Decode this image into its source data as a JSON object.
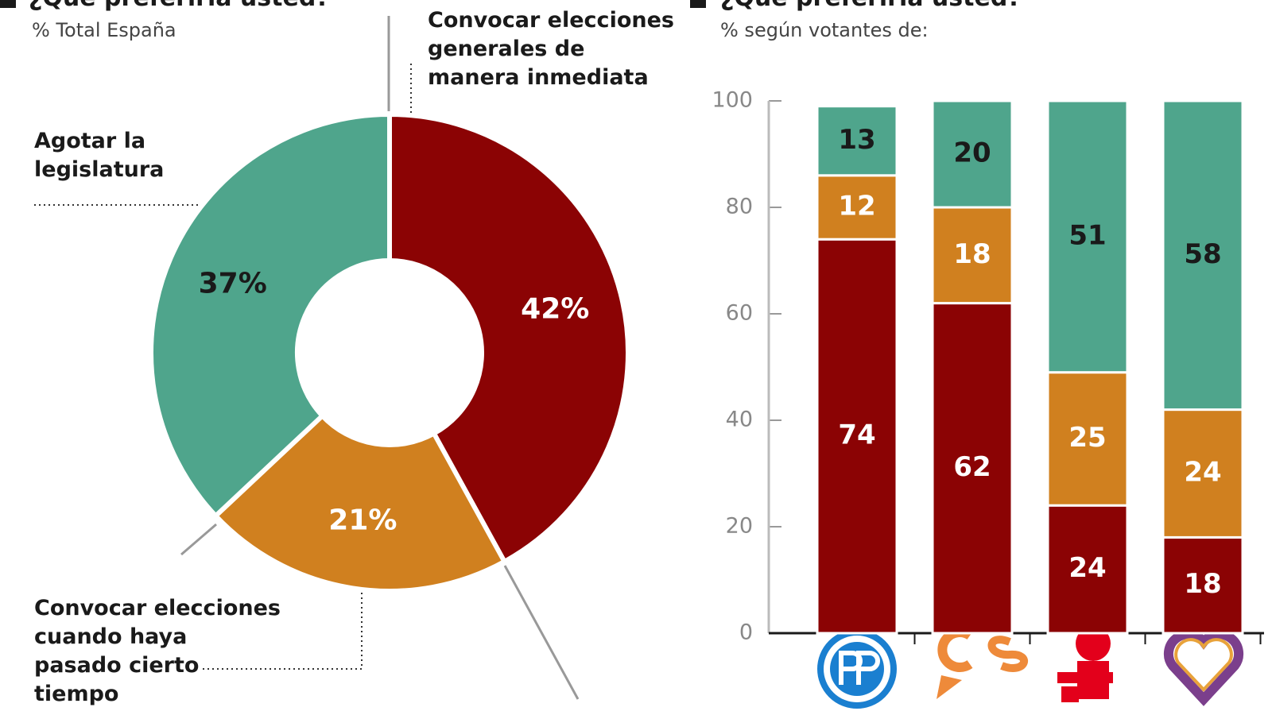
{
  "chart_data": [
    {
      "type": "pie",
      "title": "¿Qué preferiría usted?",
      "subtitle": "% Total España",
      "categories": [
        "Convocar elecciones generales de manera inmediata",
        "Convocar elecciones cuando haya pasado cierto tiempo",
        "Agotar la legislatura"
      ],
      "values": [
        42,
        21,
        37
      ],
      "value_labels": [
        "42%",
        "21%",
        "37%"
      ],
      "colors": [
        "#8b0304",
        "#d0801f",
        "#4fa58c"
      ]
    },
    {
      "type": "bar",
      "stacked": true,
      "title": "¿Qué preferiría usted?",
      "subtitle": "% según votantes de:",
      "categories": [
        null,
        null,
        null,
        null
      ],
      "series": [
        {
          "color": "#8b0304",
          "values": [
            74,
            62,
            24,
            18
          ]
        },
        {
          "color": "#d0801f",
          "values": [
            12,
            18,
            25,
            24
          ]
        },
        {
          "color": "#4fa58c",
          "values": [
            13,
            20,
            51,
            58
          ]
        }
      ],
      "ylim": [
        0,
        100
      ],
      "yticks": [
        0,
        20,
        40,
        60,
        80,
        100
      ]
    }
  ]
}
